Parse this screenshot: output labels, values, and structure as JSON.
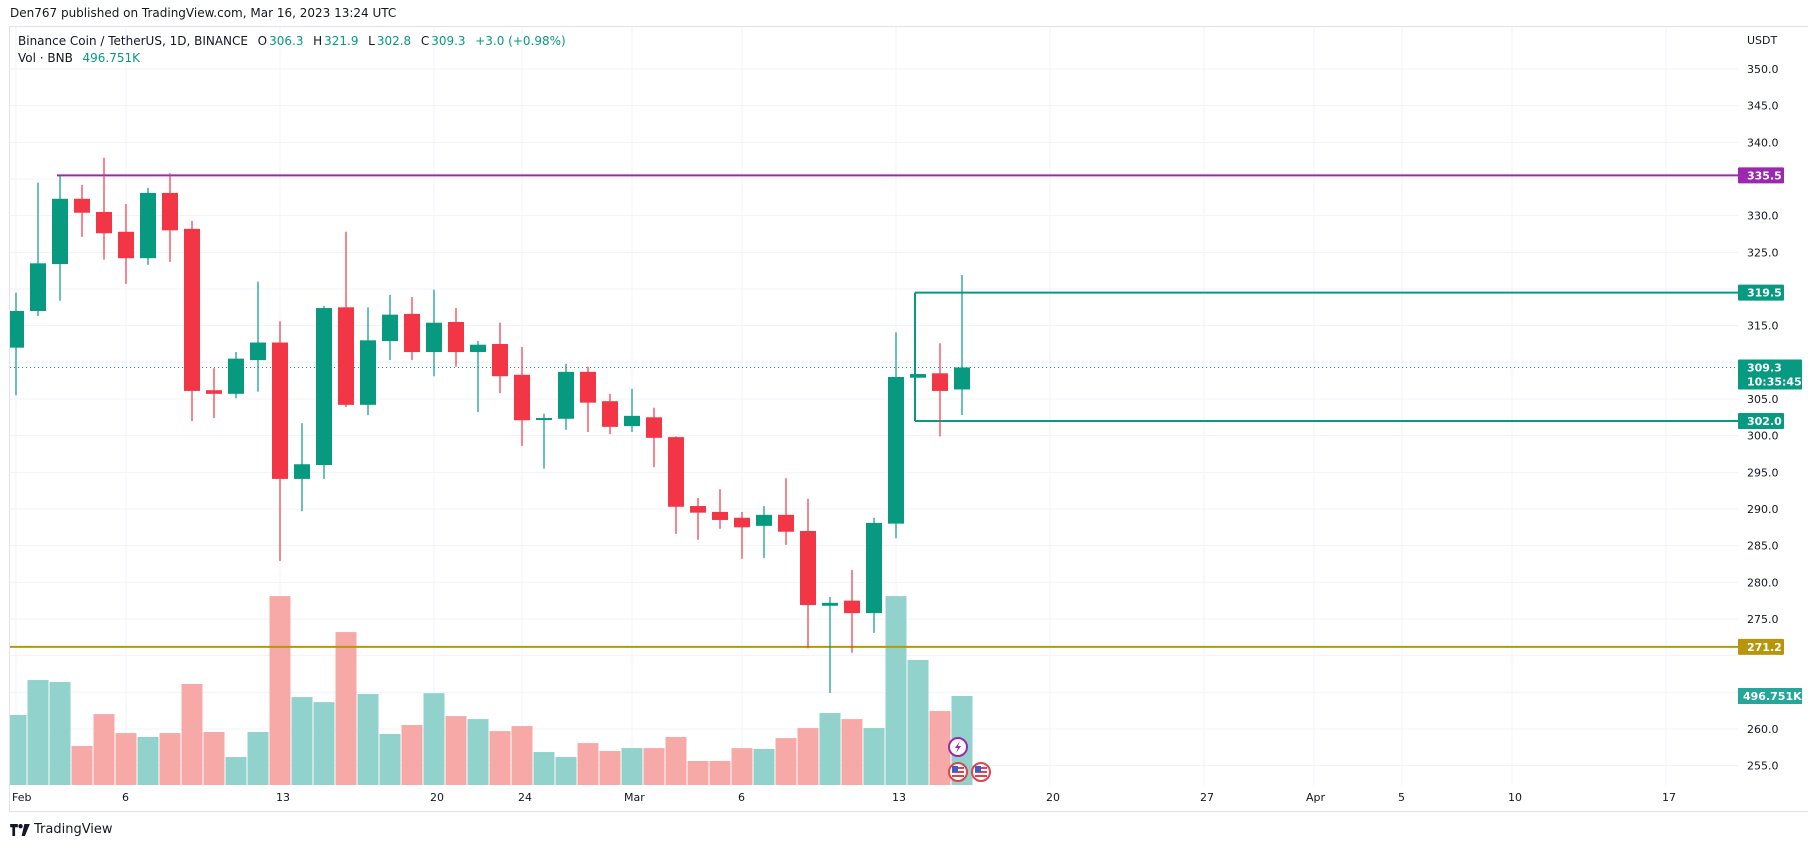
{
  "header": {
    "publisher_line": "Den767 published on TradingView.com, Mar 16, 2023 13:24 UTC"
  },
  "legend": {
    "symbol": "Binance Coin / TetherUS, 1D, BINANCE",
    "o_label": "O",
    "o_value": "306.3",
    "h_label": "H",
    "h_value": "321.9",
    "l_label": "L",
    "l_value": "302.8",
    "c_label": "C",
    "c_value": "309.3",
    "change": "+3.0 (+0.98%)",
    "vol_label": "Vol · BNB",
    "vol_value": "496.751K"
  },
  "price_scale": {
    "currency": "USDT",
    "current_price_label": "309.3",
    "countdown": "10:35:45",
    "volume_label": "496.751K"
  },
  "footer": {
    "brand": "TradingView"
  },
  "colors": {
    "up": "#089981",
    "down": "#f23645",
    "vol_up": "#92d2cc",
    "vol_down": "#f7a9a7",
    "purple_line": "#9c27b0",
    "gold_line": "#b8960c",
    "teal_line": "#089981",
    "grid": "#f0f3fa"
  },
  "chart_data": {
    "type": "candlestick",
    "title": "Binance Coin / TetherUS, 1D, BINANCE",
    "ylabel": "USDT",
    "ylim": [
      252,
      353
    ],
    "y_ticks": [
      350.0,
      345.0,
      340.0,
      330.0,
      325.0,
      315.0,
      305.0,
      300.0,
      295.0,
      290.0,
      285.0,
      280.0,
      275.0,
      260.0,
      255.0
    ],
    "x_tick_labels": [
      {
        "label": "Feb",
        "index": 0
      },
      {
        "label": "6",
        "index": 5
      },
      {
        "label": "13",
        "index": 12
      },
      {
        "label": "20",
        "index": 19
      },
      {
        "label": "24",
        "index": 23
      },
      {
        "label": "Mar",
        "index": 28
      },
      {
        "label": "6",
        "index": 33
      },
      {
        "label": "13",
        "index": 40
      },
      {
        "label": "20",
        "index": 47
      },
      {
        "label": "27",
        "index": 54
      },
      {
        "label": "Apr",
        "index": 59
      },
      {
        "label": "5",
        "index": 63
      },
      {
        "label": "10",
        "index": 68
      },
      {
        "label": "17",
        "index": 75
      }
    ],
    "dates": [
      "Feb 1",
      "Feb 2",
      "Feb 3",
      "Feb 4",
      "Feb 5",
      "Feb 6",
      "Feb 7",
      "Feb 8",
      "Feb 9",
      "Feb 10",
      "Feb 11",
      "Feb 12",
      "Feb 13",
      "Feb 14",
      "Feb 15",
      "Feb 16",
      "Feb 17",
      "Feb 18",
      "Feb 19",
      "Feb 20",
      "Feb 21",
      "Feb 22",
      "Feb 23",
      "Feb 24",
      "Feb 25",
      "Feb 26",
      "Feb 27",
      "Feb 28",
      "Mar 1",
      "Mar 2",
      "Mar 3",
      "Mar 4",
      "Mar 5",
      "Mar 6",
      "Mar 7",
      "Mar 8",
      "Mar 9",
      "Mar 10",
      "Mar 11",
      "Mar 12",
      "Mar 13",
      "Mar 14",
      "Mar 15",
      "Mar 16"
    ],
    "ohlc": [
      [
        312.0,
        319.5,
        305.5,
        317.0
      ],
      [
        317.0,
        334.5,
        316.3,
        323.5
      ],
      [
        323.4,
        335.5,
        318.4,
        332.3
      ],
      [
        332.3,
        334.2,
        327.1,
        330.4
      ],
      [
        330.5,
        337.9,
        324.0,
        327.6
      ],
      [
        327.8,
        331.6,
        320.7,
        324.2
      ],
      [
        324.2,
        333.8,
        323.3,
        333.1
      ],
      [
        333.1,
        335.8,
        323.7,
        328.0
      ],
      [
        328.2,
        329.3,
        302.0,
        306.1
      ],
      [
        306.2,
        309.2,
        302.4,
        305.7
      ],
      [
        305.7,
        311.4,
        305.1,
        310.5
      ],
      [
        310.3,
        321.0,
        306.0,
        312.7
      ],
      [
        312.7,
        315.6,
        282.9,
        294.1
      ],
      [
        294.1,
        301.7,
        289.7,
        296.1
      ],
      [
        296.0,
        317.7,
        294.1,
        317.4
      ],
      [
        317.5,
        327.8,
        303.9,
        304.2
      ],
      [
        304.2,
        317.5,
        302.8,
        313.0
      ],
      [
        312.9,
        319.2,
        310.3,
        316.5
      ],
      [
        316.6,
        318.9,
        310.3,
        311.4
      ],
      [
        311.4,
        319.9,
        308.1,
        315.4
      ],
      [
        315.5,
        317.4,
        309.4,
        311.4
      ],
      [
        311.4,
        312.9,
        303.2,
        312.4
      ],
      [
        312.5,
        315.4,
        305.8,
        308.1
      ],
      [
        308.3,
        312.1,
        298.6,
        302.1
      ],
      [
        302.3,
        303.0,
        295.5,
        302.4
      ],
      [
        302.3,
        309.8,
        300.8,
        308.7
      ],
      [
        308.7,
        309.4,
        300.5,
        304.5
      ],
      [
        304.7,
        305.7,
        300.2,
        301.2
      ],
      [
        301.3,
        306.4,
        300.5,
        302.7
      ],
      [
        302.5,
        303.8,
        295.7,
        299.7
      ],
      [
        299.8,
        299.9,
        286.6,
        290.3
      ],
      [
        290.4,
        291.5,
        285.8,
        289.5
      ],
      [
        289.6,
        292.7,
        287.3,
        288.5
      ],
      [
        288.8,
        289.6,
        283.2,
        287.5
      ],
      [
        287.7,
        290.4,
        283.3,
        289.2
      ],
      [
        289.2,
        294.2,
        285.1,
        286.9
      ],
      [
        287.0,
        291.4,
        271.0,
        276.9
      ],
      [
        276.8,
        278.0,
        264.9,
        277.2
      ],
      [
        277.5,
        281.7,
        270.4,
        275.8
      ],
      [
        275.8,
        288.8,
        273.1,
        288.1
      ],
      [
        288.0,
        314.1,
        286.0,
        308.0
      ],
      [
        307.9,
        308.4,
        307.9,
        308.4
      ],
      [
        308.5,
        312.6,
        299.9,
        306.1
      ],
      [
        306.3,
        321.9,
        302.8,
        309.3
      ]
    ],
    "volume_k": [
      391,
      586,
      575,
      218,
      396,
      290,
      268,
      290,
      564,
      296,
      156,
      296,
      1055,
      491,
      463,
      854,
      508,
      285,
      335,
      513,
      385,
      368,
      301,
      329,
      184,
      156,
      234,
      190,
      206,
      206,
      268,
      134,
      134,
      206,
      201,
      262,
      318,
      402,
      368,
      318,
      1055,
      698,
      413,
      497
    ],
    "horizontal_lines": [
      {
        "price": 335.5,
        "label": "335.5",
        "color": "#9c27b0",
        "start_index": 2
      },
      {
        "price": 319.5,
        "label": "319.5",
        "color": "#089981",
        "start_index": 41
      },
      {
        "price": 302.0,
        "label": "302.0",
        "color": "#089981",
        "start_index": 41
      },
      {
        "price": 271.2,
        "label": "271.2",
        "color": "#b8960c",
        "start_index": -1
      }
    ],
    "current_price": 309.3
  }
}
